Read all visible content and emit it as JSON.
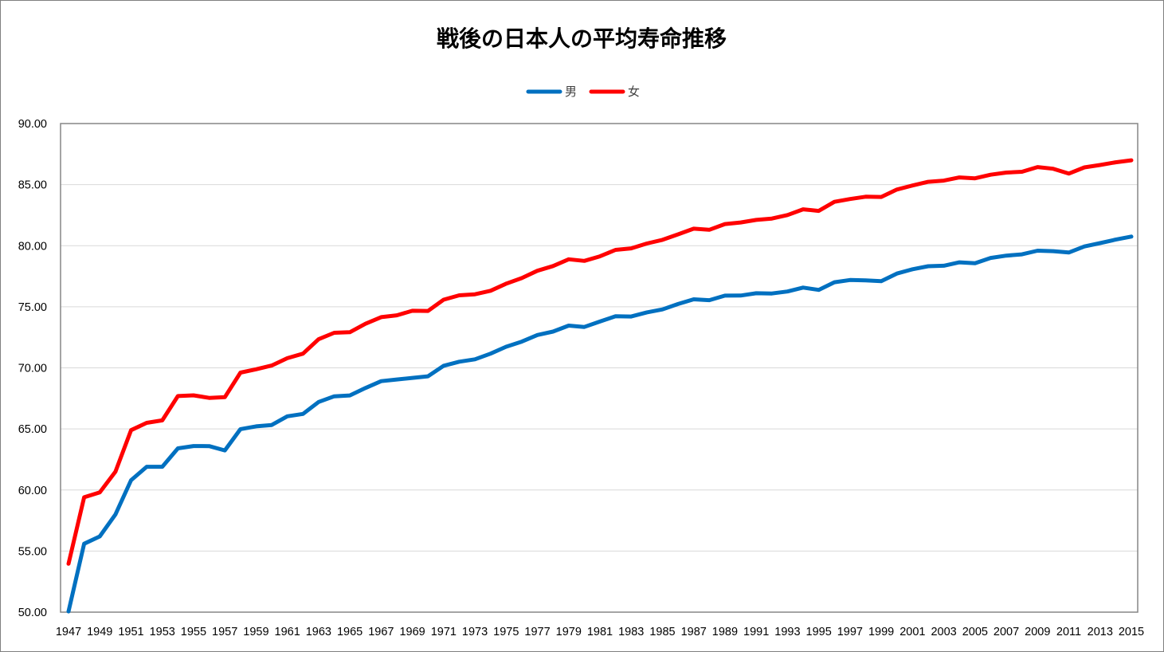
{
  "chart_data": {
    "type": "line",
    "title": "戦後の日本人の平均寿命推移",
    "xlabel": "",
    "ylabel": "",
    "ylim": [
      50,
      90
    ],
    "yticks": [
      "50.00",
      "55.00",
      "60.00",
      "65.00",
      "70.00",
      "75.00",
      "80.00",
      "85.00",
      "90.00"
    ],
    "grid": true,
    "legend": "top",
    "x": [
      1947,
      1948,
      1949,
      1950,
      1951,
      1952,
      1953,
      1954,
      1955,
      1956,
      1957,
      1958,
      1959,
      1960,
      1961,
      1962,
      1963,
      1964,
      1965,
      1966,
      1967,
      1968,
      1969,
      1970,
      1971,
      1972,
      1973,
      1974,
      1975,
      1976,
      1977,
      1978,
      1979,
      1980,
      1981,
      1982,
      1983,
      1984,
      1985,
      1986,
      1987,
      1988,
      1989,
      1990,
      1991,
      1992,
      1993,
      1994,
      1995,
      1996,
      1997,
      1998,
      1999,
      2000,
      2001,
      2002,
      2003,
      2004,
      2005,
      2006,
      2007,
      2008,
      2009,
      2010,
      2011,
      2012,
      2013,
      2014,
      2015
    ],
    "xtick_labels": [
      "1947",
      "1949",
      "1951",
      "1953",
      "1955",
      "1957",
      "1959",
      "1961",
      "1963",
      "1965",
      "1967",
      "1969",
      "1971",
      "1973",
      "1975",
      "1977",
      "1979",
      "1981",
      "1983",
      "1985",
      "1987",
      "1989",
      "1991",
      "1993",
      "1995",
      "1997",
      "1999",
      "2001",
      "2003",
      "2005",
      "2007",
      "2009",
      "2011",
      "2013",
      "2015"
    ],
    "series": [
      {
        "name": "男",
        "color": "#0070c0",
        "values": [
          50.06,
          55.6,
          56.2,
          58.0,
          60.8,
          61.9,
          61.9,
          63.41,
          63.6,
          63.59,
          63.24,
          64.98,
          65.21,
          65.32,
          66.03,
          66.23,
          67.21,
          67.67,
          67.74,
          68.35,
          68.91,
          69.05,
          69.18,
          69.31,
          70.17,
          70.5,
          70.7,
          71.16,
          71.73,
          72.15,
          72.69,
          72.97,
          73.46,
          73.35,
          73.79,
          74.22,
          74.2,
          74.54,
          74.78,
          75.23,
          75.61,
          75.54,
          75.91,
          75.92,
          76.11,
          76.09,
          76.25,
          76.57,
          76.38,
          77.01,
          77.19,
          77.16,
          77.1,
          77.72,
          78.07,
          78.32,
          78.36,
          78.64,
          78.56,
          79.0,
          79.19,
          79.29,
          79.59,
          79.55,
          79.44,
          79.94,
          80.21,
          80.5,
          80.75
        ]
      },
      {
        "name": "女",
        "color": "#ff0000",
        "values": [
          53.96,
          59.4,
          59.8,
          61.5,
          64.9,
          65.5,
          65.7,
          67.69,
          67.75,
          67.54,
          67.6,
          69.61,
          69.88,
          70.19,
          70.79,
          71.16,
          72.34,
          72.87,
          72.92,
          73.61,
          74.15,
          74.3,
          74.67,
          74.66,
          75.58,
          75.94,
          76.02,
          76.31,
          76.89,
          77.35,
          77.95,
          78.33,
          78.89,
          78.76,
          79.13,
          79.66,
          79.78,
          80.18,
          80.48,
          80.93,
          81.39,
          81.3,
          81.77,
          81.9,
          82.11,
          82.22,
          82.51,
          82.98,
          82.85,
          83.59,
          83.82,
          84.01,
          83.99,
          84.6,
          84.93,
          85.23,
          85.33,
          85.59,
          85.52,
          85.81,
          85.99,
          86.05,
          86.44,
          86.3,
          85.9,
          86.41,
          86.61,
          86.83,
          86.99
        ]
      }
    ]
  }
}
